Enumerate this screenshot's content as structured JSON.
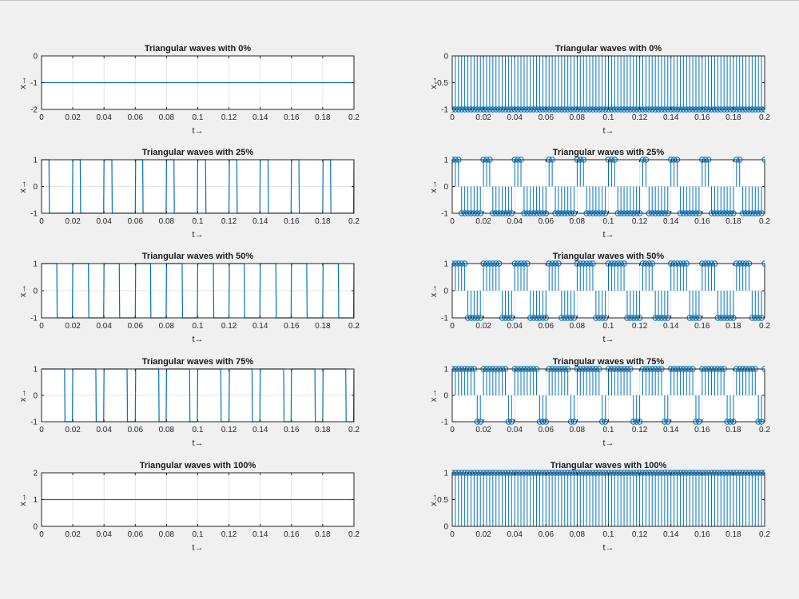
{
  "figure": {
    "background": "#f0f0f0",
    "axes_background": "#ffffff",
    "line_color": "#0072bd",
    "grid_color": "#e6e6e6"
  },
  "chart_data": [
    {
      "type": "line",
      "title": "Triangular waves with 0%",
      "xlabel": "t→",
      "ylabel": "x→",
      "duty_percent": 0,
      "xlim": [
        0,
        0.2
      ],
      "ylim": [
        -2,
        0
      ],
      "x_ticks": [
        0,
        0.02,
        0.04,
        0.06,
        0.08,
        0.1,
        0.12,
        0.14,
        0.16,
        0.18,
        0.2
      ],
      "y_ticks": [
        -2,
        -1,
        0
      ],
      "x_tick_labels": [
        "0",
        "0.02",
        "0.04",
        "0.06",
        "0.08",
        "0.1",
        "0.12",
        "0.14",
        "0.16",
        "0.18",
        "0.2"
      ],
      "y_tick_labels": [
        "-2",
        "-1",
        "0"
      ],
      "grid": "vertical",
      "period": 0.02,
      "low": -1,
      "high": 1
    },
    {
      "type": "stem",
      "title": "Triangular waves with 0%",
      "xlabel": "t→",
      "ylabel": "x→",
      "duty_percent": 0,
      "xlim": [
        0,
        0.2
      ],
      "ylim": [
        -1,
        0
      ],
      "x_ticks": [
        0,
        0.02,
        0.04,
        0.06,
        0.08,
        0.1,
        0.12,
        0.14,
        0.16,
        0.18,
        0.2
      ],
      "y_ticks": [
        -1,
        -0.5,
        0
      ],
      "x_tick_labels": [
        "0",
        "0.02",
        "0.04",
        "0.06",
        "0.08",
        "0.1",
        "0.12",
        "0.14",
        "0.16",
        "0.18",
        "0.2"
      ],
      "y_tick_labels": [
        "-1",
        "-0.5",
        "0"
      ],
      "grid": "vertical",
      "period": 0.02,
      "low": -1,
      "high": 1,
      "sample_step": 0.002
    },
    {
      "type": "line",
      "title": "Triangular waves with 25%",
      "xlabel": "t→",
      "ylabel": "x→",
      "duty_percent": 25,
      "xlim": [
        0,
        0.2
      ],
      "ylim": [
        -1,
        1
      ],
      "x_ticks": [
        0,
        0.02,
        0.04,
        0.06,
        0.08,
        0.1,
        0.12,
        0.14,
        0.16,
        0.18,
        0.2
      ],
      "y_ticks": [
        -1,
        0,
        1
      ],
      "x_tick_labels": [
        "0",
        "0.02",
        "0.04",
        "0.06",
        "0.08",
        "0.1",
        "0.12",
        "0.14",
        "0.16",
        "0.18",
        "0.2"
      ],
      "y_tick_labels": [
        "-1",
        "0",
        "1"
      ],
      "grid": "both",
      "period": 0.02,
      "low": -1,
      "high": 1
    },
    {
      "type": "stem",
      "title": "Triangular waves with 25%",
      "xlabel": "t→",
      "ylabel": "x→",
      "duty_percent": 25,
      "xlim": [
        0,
        0.2
      ],
      "ylim": [
        -1,
        1
      ],
      "x_ticks": [
        0,
        0.02,
        0.04,
        0.06,
        0.08,
        0.1,
        0.12,
        0.14,
        0.16,
        0.18,
        0.2
      ],
      "y_ticks": [
        -1,
        0,
        1
      ],
      "x_tick_labels": [
        "0",
        "0.02",
        "0.04",
        "0.06",
        "0.08",
        "0.1",
        "0.12",
        "0.14",
        "0.16",
        "0.18",
        "0.2"
      ],
      "y_tick_labels": [
        "-1",
        "0",
        "1"
      ],
      "grid": "both",
      "period": 0.02,
      "low": -1,
      "high": 1,
      "sample_step": 0.002
    },
    {
      "type": "line",
      "title": "Triangular waves with 50%",
      "xlabel": "t→",
      "ylabel": "x→",
      "duty_percent": 50,
      "xlim": [
        0,
        0.2
      ],
      "ylim": [
        -1,
        1
      ],
      "x_ticks": [
        0,
        0.02,
        0.04,
        0.06,
        0.08,
        0.1,
        0.12,
        0.14,
        0.16,
        0.18,
        0.2
      ],
      "y_ticks": [
        -1,
        0,
        1
      ],
      "x_tick_labels": [
        "0",
        "0.02",
        "0.04",
        "0.06",
        "0.08",
        "0.1",
        "0.12",
        "0.14",
        "0.16",
        "0.18",
        "0.2"
      ],
      "y_tick_labels": [
        "-1",
        "0",
        "1"
      ],
      "grid": "both",
      "period": 0.02,
      "low": -1,
      "high": 1
    },
    {
      "type": "stem",
      "title": "Triangular waves with 50%",
      "xlabel": "t→",
      "ylabel": "x→",
      "duty_percent": 50,
      "xlim": [
        0,
        0.2
      ],
      "ylim": [
        -1,
        1
      ],
      "x_ticks": [
        0,
        0.02,
        0.04,
        0.06,
        0.08,
        0.1,
        0.12,
        0.14,
        0.16,
        0.18,
        0.2
      ],
      "y_ticks": [
        -1,
        0,
        1
      ],
      "x_tick_labels": [
        "0",
        "0.02",
        "0.04",
        "0.06",
        "0.08",
        "0.1",
        "0.12",
        "0.14",
        "0.16",
        "0.18",
        "0.2"
      ],
      "y_tick_labels": [
        "-1",
        "0",
        "1"
      ],
      "grid": "both",
      "period": 0.02,
      "low": -1,
      "high": 1,
      "sample_step": 0.002
    },
    {
      "type": "line",
      "title": "Triangular waves with 75%",
      "xlabel": "t→",
      "ylabel": "x→",
      "duty_percent": 75,
      "xlim": [
        0,
        0.2
      ],
      "ylim": [
        -1,
        1
      ],
      "x_ticks": [
        0,
        0.02,
        0.04,
        0.06,
        0.08,
        0.1,
        0.12,
        0.14,
        0.16,
        0.18,
        0.2
      ],
      "y_ticks": [
        -1,
        0,
        1
      ],
      "x_tick_labels": [
        "0",
        "0.02",
        "0.04",
        "0.06",
        "0.08",
        "0.1",
        "0.12",
        "0.14",
        "0.16",
        "0.18",
        "0.2"
      ],
      "y_tick_labels": [
        "-1",
        "0",
        "1"
      ],
      "grid": "both",
      "period": 0.02,
      "low": -1,
      "high": 1
    },
    {
      "type": "stem",
      "title": "Triangular waves with 75%",
      "xlabel": "t→",
      "ylabel": "x→",
      "duty_percent": 75,
      "xlim": [
        0,
        0.2
      ],
      "ylim": [
        -1,
        1
      ],
      "x_ticks": [
        0,
        0.02,
        0.04,
        0.06,
        0.08,
        0.1,
        0.12,
        0.14,
        0.16,
        0.18,
        0.2
      ],
      "y_ticks": [
        -1,
        0,
        1
      ],
      "x_tick_labels": [
        "0",
        "0.02",
        "0.04",
        "0.06",
        "0.08",
        "0.1",
        "0.12",
        "0.14",
        "0.16",
        "0.18",
        "0.2"
      ],
      "y_tick_labels": [
        "-1",
        "0",
        "1"
      ],
      "grid": "both",
      "period": 0.02,
      "low": -1,
      "high": 1,
      "sample_step": 0.002
    },
    {
      "type": "line",
      "title": "Triangular waves with 100%",
      "xlabel": "t→",
      "ylabel": "x→",
      "duty_percent": 100,
      "xlim": [
        0,
        0.2
      ],
      "ylim": [
        0,
        2
      ],
      "x_ticks": [
        0,
        0.02,
        0.04,
        0.06,
        0.08,
        0.1,
        0.12,
        0.14,
        0.16,
        0.18,
        0.2
      ],
      "y_ticks": [
        0,
        1,
        2
      ],
      "x_tick_labels": [
        "0",
        "0.02",
        "0.04",
        "0.06",
        "0.08",
        "0.1",
        "0.12",
        "0.14",
        "0.16",
        "0.18",
        "0.2"
      ],
      "y_tick_labels": [
        "0",
        "1",
        "2"
      ],
      "grid": "vertical",
      "period": 0.02,
      "low": -1,
      "high": 1
    },
    {
      "type": "stem",
      "title": "Triangular waves with 100%",
      "xlabel": "t→",
      "ylabel": "x→",
      "duty_percent": 100,
      "xlim": [
        0,
        0.2
      ],
      "ylim": [
        0,
        1
      ],
      "x_ticks": [
        0,
        0.02,
        0.04,
        0.06,
        0.08,
        0.1,
        0.12,
        0.14,
        0.16,
        0.18,
        0.2
      ],
      "y_ticks": [
        0,
        0.5,
        1
      ],
      "x_tick_labels": [
        "0",
        "0.02",
        "0.04",
        "0.06",
        "0.08",
        "0.1",
        "0.12",
        "0.14",
        "0.16",
        "0.18",
        "0.2"
      ],
      "y_tick_labels": [
        "0",
        "0.5",
        "1"
      ],
      "grid": "vertical",
      "period": 0.02,
      "low": -1,
      "high": 1,
      "sample_step": 0.002
    }
  ]
}
